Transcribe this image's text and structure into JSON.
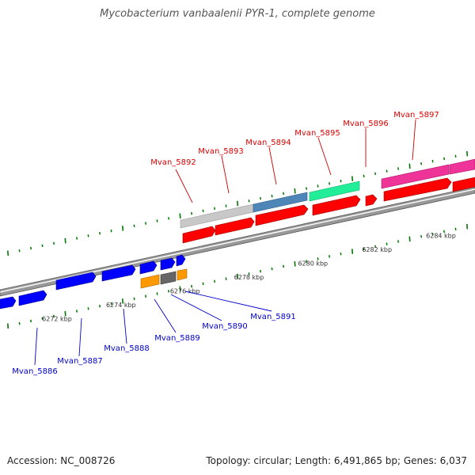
{
  "title": "Mycobacterium vanbaalenii PYR-1, complete genome",
  "footer": {
    "accession": "Accession: NC_008726",
    "summary": "Topology: circular; Length: 6,491,865 bp; Genes: 6,037"
  },
  "colors": {
    "backbone": "#888888",
    "tick_mark": "#007700",
    "upper_label": "#dd0000",
    "lower_label": "#0000cc",
    "red_gene": "#ff0000",
    "blue_gene": "#0000ff"
  },
  "coordinates": [
    {
      "label": "6272 kbp",
      "pos": 6272
    },
    {
      "label": "6274 kbp",
      "pos": 6274
    },
    {
      "label": "6276 kbp",
      "pos": 6276
    },
    {
      "label": "6278 kbp",
      "pos": 6278
    },
    {
      "label": "6280 kbp",
      "pos": 6280
    },
    {
      "label": "6282 kbp",
      "pos": 6282
    },
    {
      "label": "6284 kbp",
      "pos": 6284
    }
  ],
  "upper_labels": [
    "Mvan_5892",
    "Mvan_5893",
    "Mvan_5894",
    "Mvan_5895",
    "Mvan_5896",
    "Mvan_5897"
  ],
  "lower_labels": [
    "Mvan_5886",
    "Mvan_5887",
    "Mvan_5888",
    "Mvan_5889",
    "Mvan_5890",
    "Mvan_5891"
  ]
}
